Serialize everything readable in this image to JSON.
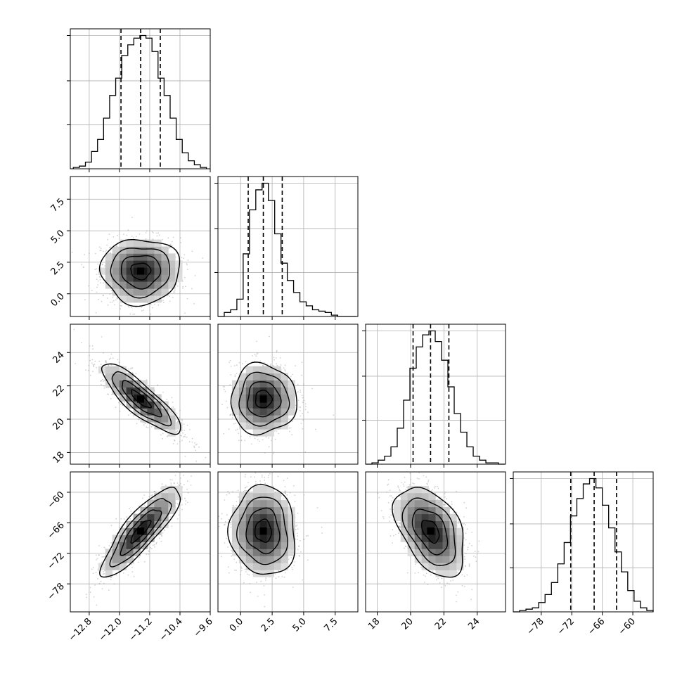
{
  "chart_data": {
    "type": "corner",
    "grid": true,
    "parameters": [
      {
        "index": 0,
        "range": [
          -13.3,
          -9.6
        ],
        "ticks": [
          -12.8,
          -12.0,
          -11.2,
          -10.4,
          -9.6
        ],
        "tick_labels": [
          "−12.8",
          "−12.0",
          "−11.2",
          "−10.4",
          "−9.6"
        ],
        "quantiles": [
          -11.96,
          -11.44,
          -10.92
        ],
        "hist": {
          "bins": [
            -13.22,
            -13.06,
            -12.9,
            -12.74,
            -12.58,
            -12.42,
            -12.26,
            -12.1,
            -11.94,
            -11.78,
            -11.62,
            -11.46,
            -11.3,
            -11.14,
            -10.98,
            -10.82,
            -10.66,
            -10.5,
            -10.34,
            -10.18,
            -10.02,
            -9.86,
            -9.7
          ],
          "heights": [
            0.01,
            0.02,
            0.05,
            0.13,
            0.22,
            0.38,
            0.55,
            0.68,
            0.85,
            0.93,
            0.98,
            1.0,
            0.98,
            0.88,
            0.68,
            0.55,
            0.38,
            0.22,
            0.12,
            0.06,
            0.03,
            0.01
          ]
        }
      },
      {
        "index": 1,
        "range": [
          -1.8,
          9.3
        ],
        "ticks": [
          0.0,
          2.5,
          5.0,
          7.5
        ],
        "tick_labels": [
          "0.0",
          "2.5",
          "5.0",
          "7.5"
        ],
        "quantiles": [
          0.6,
          1.8,
          3.3
        ],
        "hist": {
          "bins": [
            -1.8,
            -1.3,
            -0.8,
            -0.3,
            0.2,
            0.7,
            1.2,
            1.7,
            2.2,
            2.7,
            3.2,
            3.7,
            4.2,
            4.7,
            5.2,
            5.7,
            6.2,
            6.7,
            7.2,
            7.7,
            8.2,
            8.7,
            9.2
          ],
          "heights": [
            0.0,
            0.03,
            0.05,
            0.13,
            0.47,
            0.8,
            0.95,
            1.0,
            0.87,
            0.62,
            0.4,
            0.27,
            0.18,
            0.11,
            0.08,
            0.05,
            0.04,
            0.03,
            0.01,
            0.0,
            0.0,
            0.0
          ]
        }
      },
      {
        "index": 2,
        "range": [
          17.3,
          25.7
        ],
        "ticks": [
          18,
          20,
          22,
          24
        ],
        "tick_labels": [
          "18",
          "20",
          "22",
          "24"
        ],
        "quantiles": [
          20.15,
          21.2,
          22.3
        ],
        "hist": {
          "bins": [
            17.3,
            17.68,
            18.06,
            18.44,
            18.82,
            19.2,
            19.58,
            19.96,
            20.34,
            20.72,
            21.1,
            21.48,
            21.86,
            22.24,
            22.62,
            23.0,
            23.38,
            23.76,
            24.14,
            24.52,
            24.9,
            25.28,
            25.66
          ],
          "heights": [
            0.0,
            0.01,
            0.03,
            0.06,
            0.13,
            0.27,
            0.48,
            0.72,
            0.88,
            0.97,
            1.0,
            0.92,
            0.78,
            0.58,
            0.38,
            0.24,
            0.13,
            0.06,
            0.03,
            0.01,
            0.01,
            0.0
          ]
        }
      },
      {
        "index": 3,
        "range": [
          -83.5,
          -56.0
        ],
        "ticks": [
          -78,
          -72,
          -66,
          -60
        ],
        "tick_labels": [
          "−78",
          "−72",
          "−66",
          "−60"
        ],
        "quantiles": [
          -72.2,
          -67.6,
          -63.2
        ],
        "hist": {
          "bins": [
            -83.5,
            -82.25,
            -81.0,
            -79.75,
            -78.5,
            -77.25,
            -76.0,
            -74.75,
            -73.5,
            -72.25,
            -71.0,
            -69.75,
            -68.5,
            -67.25,
            -66.0,
            -64.75,
            -63.5,
            -62.25,
            -61.0,
            -59.75,
            -58.5,
            -57.25,
            -56.0
          ],
          "heights": [
            0.0,
            0.01,
            0.02,
            0.03,
            0.07,
            0.13,
            0.22,
            0.36,
            0.52,
            0.72,
            0.85,
            0.96,
            1.0,
            0.93,
            0.8,
            0.63,
            0.45,
            0.3,
            0.16,
            0.08,
            0.03,
            0.01
          ]
        }
      }
    ],
    "pairs": [
      {
        "row": 1,
        "col": 0,
        "mean": [
          -11.44,
          1.8
        ],
        "sd": [
          0.52,
          1.3
        ],
        "corr": 0.0
      },
      {
        "row": 2,
        "col": 0,
        "mean": [
          -11.44,
          21.2
        ],
        "sd": [
          0.52,
          1.05
        ],
        "corr": -0.85
      },
      {
        "row": 2,
        "col": 1,
        "mean": [
          1.8,
          21.2
        ],
        "sd": [
          1.3,
          1.05
        ],
        "corr": 0.0
      },
      {
        "row": 3,
        "col": 0,
        "mean": [
          -11.44,
          -67.6
        ],
        "sd": [
          0.52,
          4.4
        ],
        "corr": 0.85
      },
      {
        "row": 3,
        "col": 1,
        "mean": [
          1.8,
          -67.6
        ],
        "sd": [
          1.3,
          4.4
        ],
        "corr": -0.05
      },
      {
        "row": 3,
        "col": 2,
        "mean": [
          21.2,
          -67.6
        ],
        "sd": [
          1.05,
          4.4
        ],
        "corr": -0.45
      }
    ],
    "contour_levels": [
      0.5,
      1.0,
      1.5,
      2.0
    ],
    "colors": {
      "line": "#000000",
      "grid": "#b0b0b0",
      "points": "#9a9a9a",
      "density_light": "#ffffff",
      "density_dark": "#000000"
    }
  }
}
